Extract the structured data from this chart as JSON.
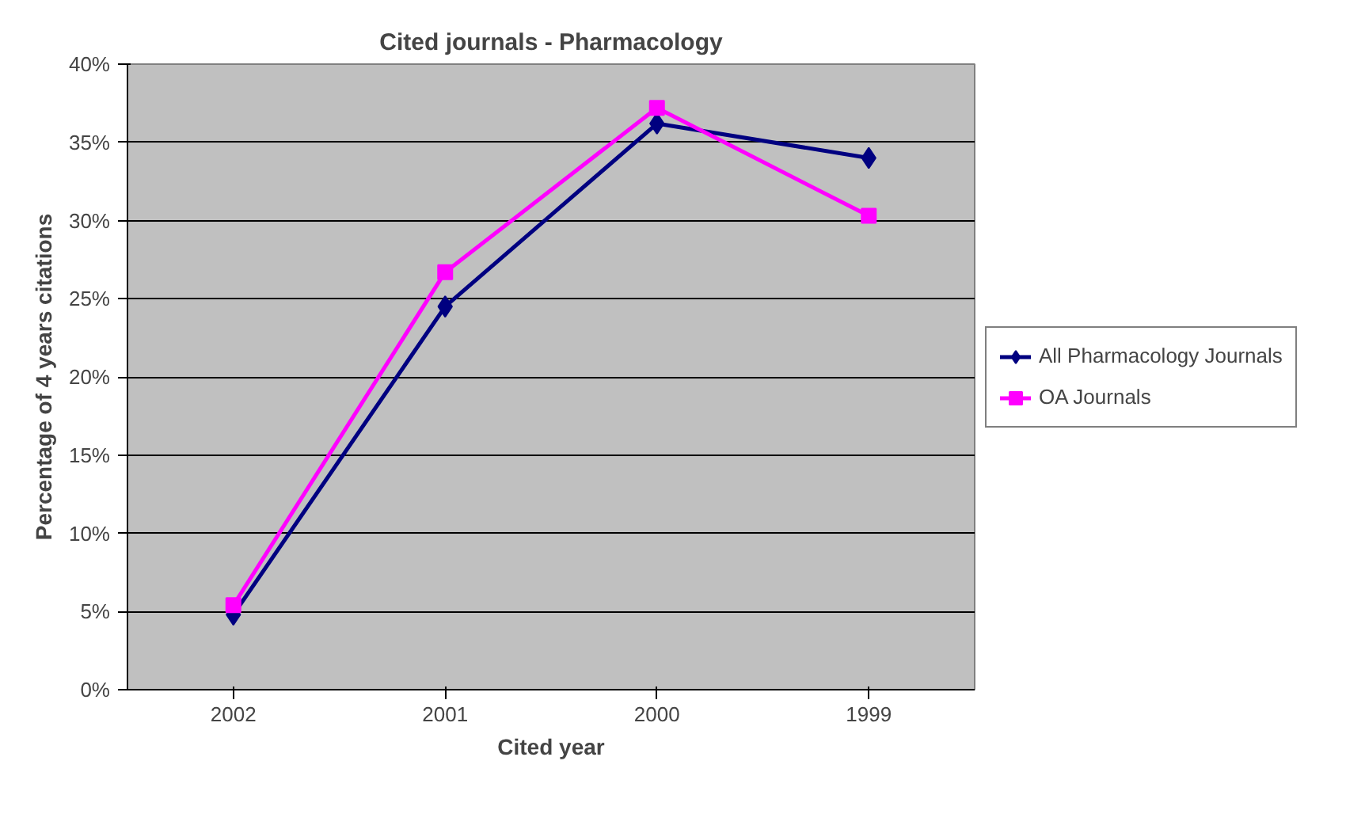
{
  "chart_data": {
    "type": "line",
    "title": "Cited journals - Pharmacology",
    "xlabel": "Cited year",
    "ylabel": "Percentage of 4 years citations",
    "categories": [
      "2002",
      "2001",
      "2000",
      "1999"
    ],
    "series": [
      {
        "name": "All Pharmacology Journals",
        "color": "#000080",
        "marker": "diamond",
        "values": [
          4.8,
          24.5,
          36.2,
          34.0
        ]
      },
      {
        "name": "OA Journals",
        "color": "#ff00ff",
        "marker": "square",
        "values": [
          5.4,
          26.7,
          37.2,
          30.3
        ]
      }
    ],
    "ylim": [
      0,
      40
    ],
    "yticks": [
      {
        "value": 0,
        "label": "0%"
      },
      {
        "value": 5,
        "label": "5%"
      },
      {
        "value": 10,
        "label": "10%"
      },
      {
        "value": 15,
        "label": "15%"
      },
      {
        "value": 20,
        "label": "20%"
      },
      {
        "value": 25,
        "label": "25%"
      },
      {
        "value": 30,
        "label": "30%"
      },
      {
        "value": 35,
        "label": "35%"
      },
      {
        "value": 40,
        "label": "40%"
      }
    ],
    "grid": "y",
    "legend": "right",
    "line_style": "solid"
  }
}
